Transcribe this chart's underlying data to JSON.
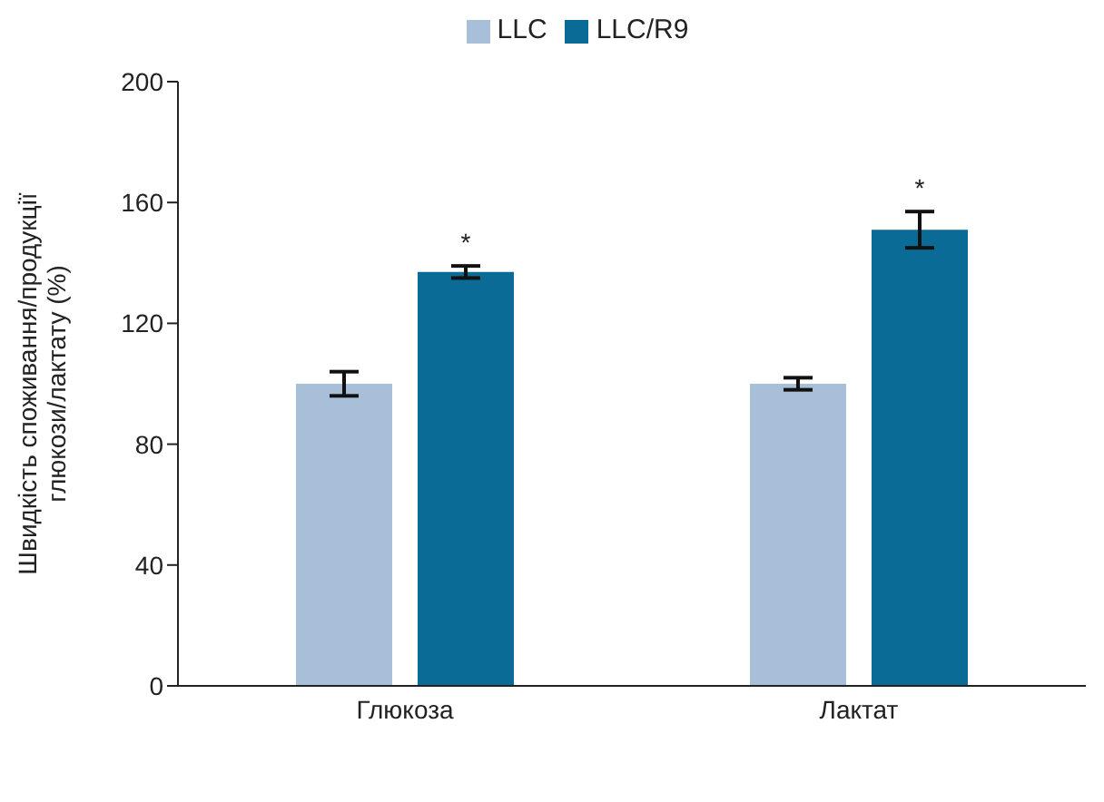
{
  "chart_data": {
    "type": "bar",
    "ylabel": "Швидкість споживання/продукції\nглюкози/лактату (%)",
    "categories": [
      "Глюкоза",
      "Лактат"
    ],
    "series": [
      {
        "name": "LLC",
        "color": "#a7bfd8",
        "values": [
          100,
          100
        ],
        "errors": [
          4,
          2
        ]
      },
      {
        "name": "LLC/R9",
        "color": "#0a6b96",
        "values": [
          137,
          151
        ],
        "errors": [
          2,
          6
        ]
      }
    ],
    "ylim": [
      0,
      200
    ],
    "yticks": [
      0,
      40,
      80,
      120,
      160,
      200
    ],
    "grid": false,
    "legend": "top",
    "annotations": [
      "*",
      "*"
    ]
  }
}
